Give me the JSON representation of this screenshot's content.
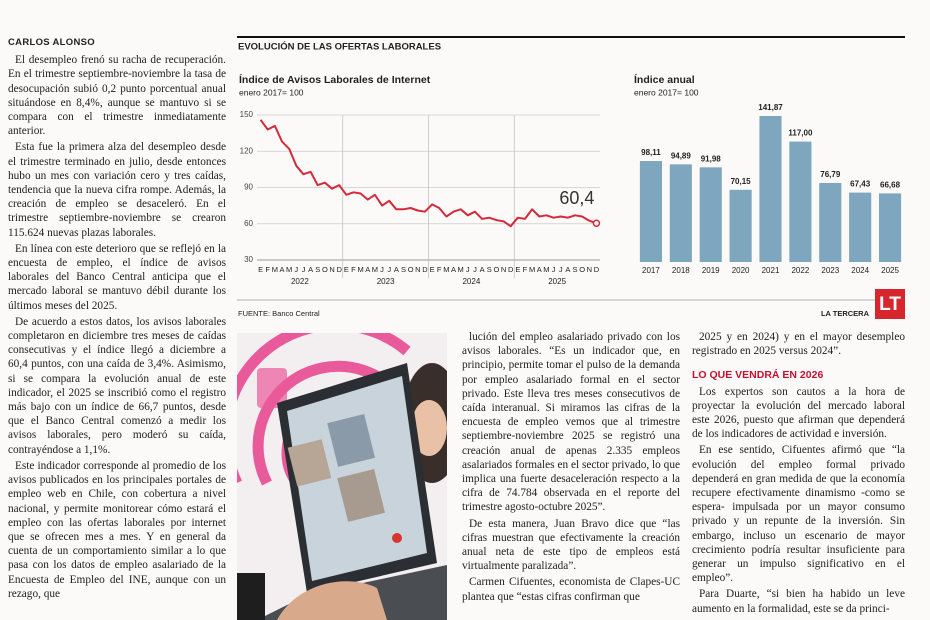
{
  "article": {
    "byline": "CARLOS ALONSO",
    "column1": [
      "El desempleo frenó su racha de recuperación. En el trimestre septiembre-noviembre la tasa de desocupación subió 0,2 punto porcentual anual situándose en 8,4%, aunque se mantuvo si se compara con el trimestre inmediatamente anterior.",
      "Esta fue la primera alza del desempleo desde el trimestre terminado en julio, desde entonces hubo un mes con variación cero y tres caídas, tendencia que la nueva cifra rompe. Además, la creación de empleo se desaceleró. En el trimestre septiembre-noviembre se crearon 115.624 nuevas plazas laborales.",
      "En línea con este deterioro que se reflejó en la encuesta de empleo, el índice de avisos laborales del Banco Central anticipa que el mercado laboral se mantuvo débil durante los últimos meses del 2025.",
      "De acuerdo a estos datos, los avisos laborales completaron en diciembre tres meses de caídas consecutivas y el índice llegó a diciembre a 60,4 puntos, con una caída de 3,4%. Asimismo, si se compara la evolución anual de este indicador, el 2025 se inscribió como el registro más bajo con un índice de 66,7 puntos, desde que el Banco Central comenzó a medir los avisos laborales, pero moderó su caída, contrayéndose a 1,1%.",
      "Este indicador corresponde al promedio de los avisos publicados en los principales portales de empleo web en Chile, con cobertura a nivel nacional, y permite monitorear cómo estará el empleo con las ofertas laborales por internet que se ofrecen mes a mes. Y en general da cuenta de un comportamiento similar a lo que pasa con los datos de empleo asalariado de la Encuesta de Empleo del INE, aunque con un rezago, que"
    ],
    "column2": [
      "lución del empleo asalariado privado con los avisos laborales. “Es un indicador que, en principio, permite tomar el pulso de la demanda por empleo asalariado formal en el sector privado. Este lleva tres meses consecutivos de caída interanual. Si miramos las cifras de la encuesta de empleo vemos que al trimestre septiembre-noviembre 2025 se registró una creación anual de apenas 2.335 empleos asalariados formales en el sector privado, lo que implica una fuerte desaceleración respecto a la cifra de 74.784 observada en el reporte del trimestre agosto-octubre 2025”.",
      "De esta manera, Juan Bravo dice que “las cifras muestran que efectivamente la creación anual neta de este tipo de empleos está virtualmente paralizada”.",
      "Carmen Cifuentes, economista de Clapes-UC plantea que “estas cifras confirman que"
    ],
    "column3_top": [
      "2025 y en 2024) y en el mayor desempleo registrado en 2025 versus 2024”."
    ],
    "subheading": "LO QUE VENDRÁ EN 2026",
    "column3": [
      "Los expertos son cautos a la hora de proyectar la evolución del mercado laboral este 2026, puesto que afirman que dependerá de los indicadores de actividad e inversión.",
      "En ese sentido, Cifuentes afirmó que “la evolución del empleo formal privado dependerá en gran medida de que la economía recupere efectivamente dinamismo -como se espera- impulsada por un mayor consumo privado y un repunte de la inversión. Sin embargo, incluso un escenario de mayor crecimiento podría resultar insuficiente para generar un impulso significativo en el empleo”.",
      "Para Duarte, “si bien ha habido un leve aumento en la formalidad, este se da princi-"
    ]
  },
  "chart_section": {
    "title": "EVOLUCIÓN DE LAS OFERTAS LABORALES",
    "source": "FUENTE: Banco Central",
    "brand": "LA TERCERA",
    "logo": "LT"
  },
  "chart_data": [
    {
      "type": "line",
      "title": "Índice de Avisos Laborales de Internet",
      "subtitle": "enero 2017= 100",
      "categories": [
        "E",
        "F",
        "M",
        "A",
        "M",
        "J",
        "J",
        "A",
        "S",
        "O",
        "N",
        "D",
        "E",
        "F",
        "M",
        "A",
        "M",
        "J",
        "J",
        "A",
        "S",
        "O",
        "N",
        "D",
        "E",
        "F",
        "M",
        "A",
        "M",
        "J",
        "J",
        "A",
        "S",
        "O",
        "N",
        "D",
        "E",
        "F",
        "M",
        "A",
        "M",
        "J",
        "J",
        "A",
        "S",
        "O",
        "N",
        "D"
      ],
      "year_labels": [
        "2022",
        "2023",
        "2024",
        "2025"
      ],
      "series": [
        {
          "color": "#d42a3a",
          "values": [
            146,
            138,
            141,
            128,
            122,
            108,
            101,
            103,
            92,
            94,
            89,
            92,
            84,
            86,
            85,
            80,
            84,
            75,
            79,
            72,
            72,
            73,
            71,
            70,
            76,
            73,
            66,
            70,
            72,
            67,
            70,
            64,
            65,
            63,
            62,
            58,
            65,
            64,
            72,
            66,
            67,
            65,
            66,
            65,
            67,
            66,
            62.5,
            60.4
          ],
          "value_labels": [
            null,
            null,
            null,
            null,
            null,
            null,
            null,
            null,
            null,
            null,
            null,
            null,
            null,
            null,
            null,
            null,
            null,
            null,
            null,
            null,
            null,
            null,
            null,
            null,
            null,
            null,
            null,
            null,
            null,
            null,
            null,
            null,
            null,
            null,
            null,
            null,
            null,
            null,
            null,
            null,
            null,
            null,
            null,
            null,
            null,
            null,
            null,
            "60,4"
          ]
        }
      ],
      "ylim": [
        30,
        150
      ],
      "yticks": [
        30,
        60,
        90,
        120,
        150
      ],
      "grid": true
    },
    {
      "type": "bar",
      "title": "Índice anual",
      "subtitle": "enero 2017= 100",
      "categories": [
        "2017",
        "2018",
        "2019",
        "2020",
        "2021",
        "2022",
        "2023",
        "2024",
        "2025"
      ],
      "values": [
        98.11,
        94.89,
        91.98,
        70.15,
        141.87,
        117.0,
        76.79,
        67.43,
        66.68
      ],
      "value_labels": [
        "98,11",
        "94,89",
        "91,98",
        "70,15",
        "141,87",
        "117,00",
        "76,79",
        "67,43",
        "66,68"
      ],
      "color": "#7ea6bf"
    }
  ]
}
